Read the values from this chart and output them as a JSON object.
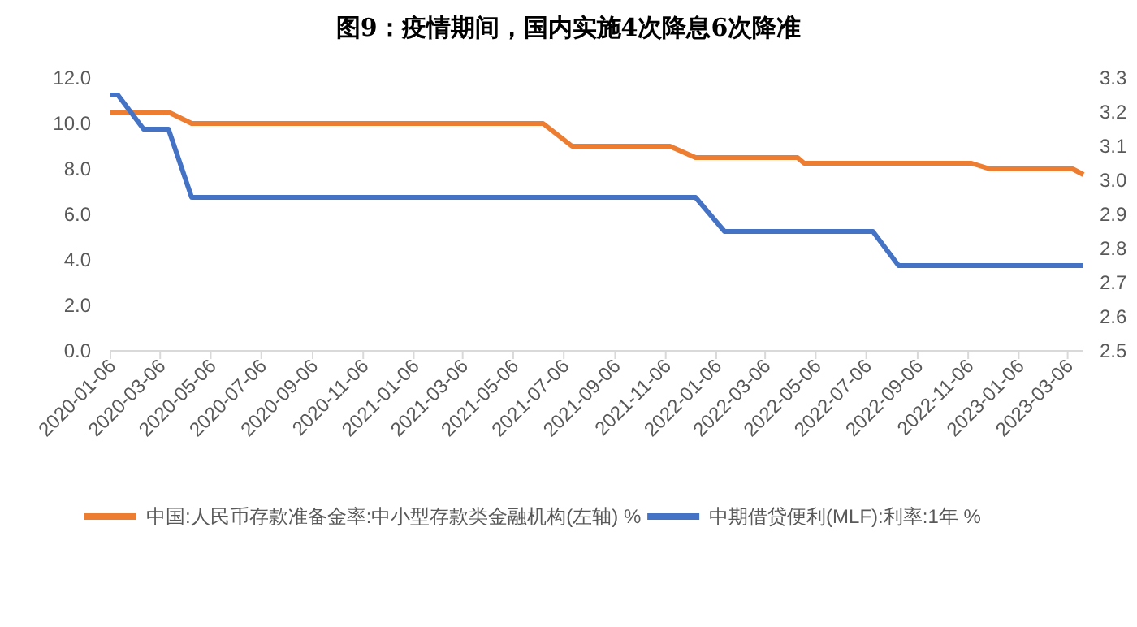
{
  "chart_data": {
    "type": "line",
    "title": "图9：疫情期间，国内实施4次降息6次降准",
    "xlim": [
      "2020-01-06",
      "2023-03-25"
    ],
    "xticks": [
      "2020-01-06",
      "2020-03-06",
      "2020-05-06",
      "2020-07-06",
      "2020-09-06",
      "2020-11-06",
      "2021-01-06",
      "2021-03-06",
      "2021-05-06",
      "2021-07-06",
      "2021-09-06",
      "2021-11-06",
      "2022-01-06",
      "2022-03-06",
      "2022-05-06",
      "2022-07-06",
      "2022-09-06",
      "2022-11-06",
      "2023-01-06",
      "2023-03-06"
    ],
    "ylim": [
      0,
      12
    ],
    "yticks": [
      {
        "value": 0,
        "label": "0.0"
      },
      {
        "value": 2,
        "label": "2.0"
      },
      {
        "value": 4,
        "label": "4.0"
      },
      {
        "value": 6,
        "label": "6.0"
      },
      {
        "value": 8,
        "label": "8.0"
      },
      {
        "value": 10,
        "label": "10.0"
      },
      {
        "value": 12,
        "label": "12.0"
      }
    ],
    "y2lim": [
      2.5,
      3.3
    ],
    "y2ticks": [
      2.5,
      2.6,
      2.7,
      2.8,
      2.9,
      {
        "value": 3,
        "label": "3.0"
      },
      3.1,
      3.2,
      3.3
    ],
    "series": [
      {
        "name": "中国:人民币存款准备金率:中小型存款类金融机构(左轴) %",
        "color": "#ed7d31",
        "x": [
          "2020-01-06",
          "2020-03-16",
          "2020-04-13",
          "2021-06-11",
          "2021-07-16",
          "2021-11-11",
          "2021-12-12",
          "2022-04-14",
          "2022-04-22",
          "2022-11-10",
          "2022-12-02",
          "2023-03-12",
          "2023-03-25"
        ],
        "values": [
          10.5,
          10.5,
          10,
          10,
          9,
          9,
          8.5,
          8.5,
          8.25,
          8.25,
          8,
          8,
          7.75
        ]
      },
      {
        "name": "中期借贷便利(MLF):利率:1年 %",
        "color": "#4472c4",
        "axis": "y2",
        "x": [
          "2020-01-06",
          "2020-01-15",
          "2020-02-15",
          "2020-03-16",
          "2020-04-13",
          "2021-12-12",
          "2022-01-16",
          "2022-07-14",
          "2022-08-14",
          "2023-03-25"
        ],
        "values": [
          3.25,
          3.25,
          3.15,
          3.15,
          2.95,
          2.95,
          2.85,
          2.85,
          2.75,
          2.75
        ]
      }
    ],
    "grid": false,
    "legend": "bottom",
    "marker": "none",
    "line_style": "solid"
  }
}
